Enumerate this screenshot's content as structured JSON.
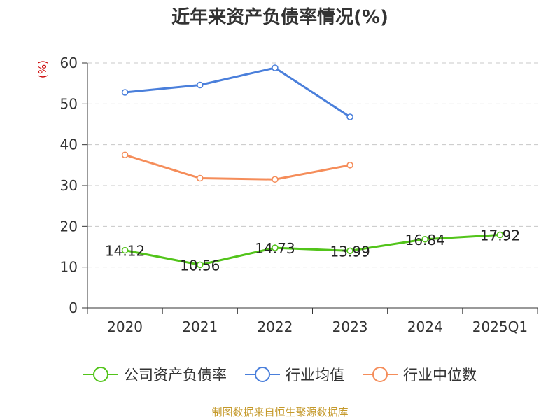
{
  "title": "近年来资产负债率情况(%)",
  "unit_label": "(%)",
  "source_text": "制图数据来自恒生聚源数据库",
  "colors": {
    "company": "#52c41a",
    "industry_avg": "#4a7fdb",
    "industry_median": "#f58d5a",
    "unit": "#cc0000",
    "source": "#c59a2c"
  },
  "chart_data": {
    "type": "line",
    "title": "近年来资产负债率情况(%)",
    "ylabel": "(%)",
    "ylim": [
      0,
      60
    ],
    "yticks": [
      0,
      10,
      20,
      30,
      40,
      50,
      60
    ],
    "grid": true,
    "legend_position": "bottom",
    "categories": [
      "2020",
      "2021",
      "2022",
      "2023",
      "2024",
      "2025Q1"
    ],
    "series": [
      {
        "name": "公司资产负债率",
        "values": [
          14.12,
          10.56,
          14.73,
          13.99,
          16.84,
          17.92
        ],
        "labels": [
          "14.12",
          "10.56",
          "14.73",
          "13.99",
          "16.84",
          "17.92"
        ],
        "color": "#52c41a"
      },
      {
        "name": "行业均值",
        "values": [
          52.8,
          54.6,
          58.8,
          46.8,
          null,
          null
        ],
        "color": "#4a7fdb"
      },
      {
        "name": "行业中位数",
        "values": [
          37.5,
          31.8,
          31.5,
          35.0,
          null,
          null
        ],
        "color": "#f58d5a"
      }
    ]
  }
}
